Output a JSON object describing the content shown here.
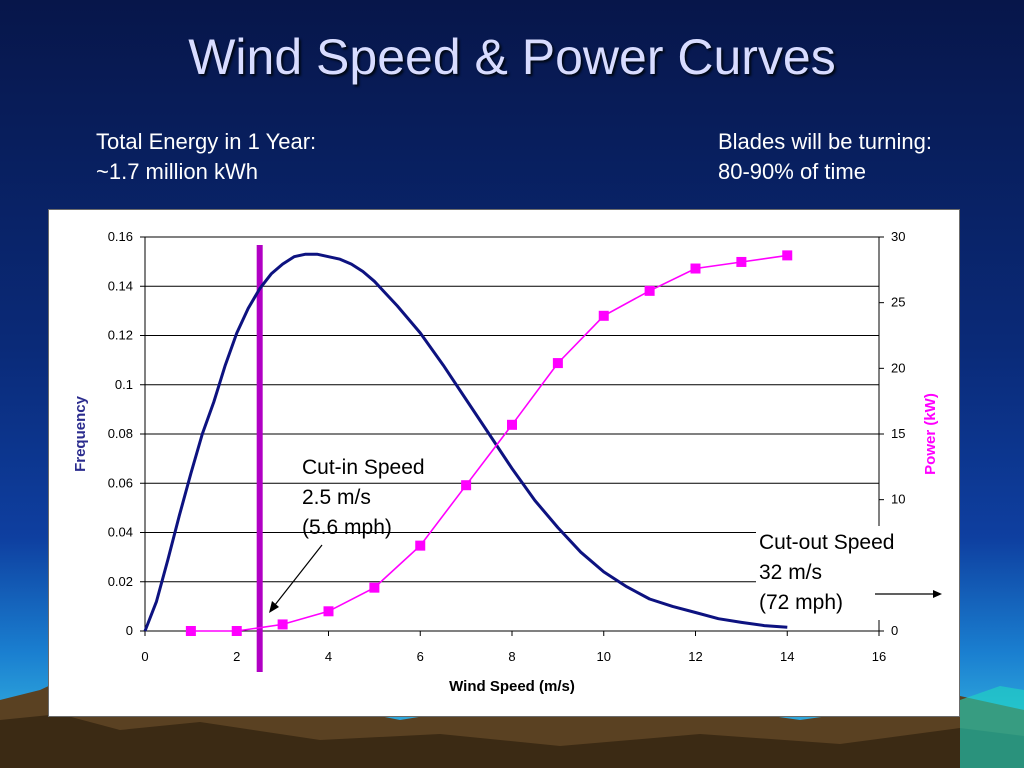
{
  "slide": {
    "title": "Wind Speed & Power Curves",
    "left_note": [
      "Total Energy in 1 Year:",
      "~1.7 million kWh"
    ],
    "right_note": [
      "Blades will be turning:",
      "80-90% of time"
    ]
  },
  "colors": {
    "frequency_line": "#0d1280",
    "power_line": "#ff00ff",
    "cut_in_marker": "#b100c4",
    "power_axis_label": "#ff00ff",
    "frequency_axis_label": "#2b2c8e"
  },
  "chart_data": {
    "type": "line",
    "xlabel": "Wind Speed (m/s)",
    "ylabel_left": "Frequency",
    "ylabel_right": "Power (kW)",
    "xlim": [
      0,
      16
    ],
    "x_ticks": [
      "0",
      "2",
      "4",
      "6",
      "8",
      "10",
      "12",
      "14",
      "16"
    ],
    "ylim_left": [
      0,
      0.16
    ],
    "y_left_ticks": [
      "0",
      "0.02",
      "0.04",
      "0.06",
      "0.08",
      "0.1",
      "0.12",
      "0.14",
      "0.16"
    ],
    "ylim_right": [
      0,
      30
    ],
    "y_right_ticks": [
      "0",
      "5",
      "10",
      "15",
      "20",
      "25",
      "30"
    ],
    "grid": "horizontal",
    "series": [
      {
        "axis": "left",
        "marker": "none",
        "x": [
          0,
          0.25,
          0.5,
          0.75,
          1,
          1.25,
          1.5,
          1.75,
          2,
          2.25,
          2.5,
          2.75,
          3,
          3.25,
          3.5,
          3.75,
          4,
          4.25,
          4.5,
          4.75,
          5,
          5.5,
          6,
          6.5,
          7,
          7.5,
          8,
          8.5,
          9,
          9.5,
          10,
          10.5,
          11,
          11.5,
          12,
          12.5,
          13,
          13.5,
          14
        ],
        "values": [
          0,
          0.012,
          0.029,
          0.047,
          0.064,
          0.08,
          0.093,
          0.108,
          0.121,
          0.131,
          0.139,
          0.145,
          0.149,
          0.152,
          0.153,
          0.153,
          0.152,
          0.151,
          0.149,
          0.146,
          0.142,
          0.132,
          0.121,
          0.108,
          0.094,
          0.08,
          0.066,
          0.053,
          0.042,
          0.032,
          0.024,
          0.018,
          0.013,
          0.01,
          0.0075,
          0.005,
          0.0035,
          0.0022,
          0.0015
        ]
      },
      {
        "axis": "right",
        "marker": "square",
        "x": [
          1,
          2,
          3,
          4,
          5,
          6,
          7,
          8,
          9,
          10,
          11,
          12,
          13,
          14
        ],
        "values": [
          0,
          0,
          0.5,
          1.5,
          3.3,
          6.5,
          11.1,
          15.7,
          20.4,
          24.0,
          25.9,
          27.6,
          28.1,
          28.6
        ]
      }
    ],
    "cut_in_speed": 2.5,
    "annotations": {
      "cut_in": [
        "Cut-in Speed",
        "2.5 m/s",
        "(5.6 mph)"
      ],
      "cut_out": [
        "Cut-out Speed",
        "32 m/s",
        "(72 mph)"
      ]
    }
  }
}
